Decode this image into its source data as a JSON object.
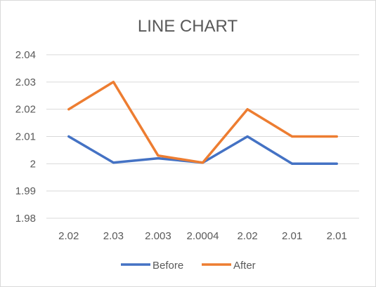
{
  "chart_data": {
    "type": "line",
    "title": "LINE CHART",
    "categories": [
      "2.02",
      "2.03",
      "2.003",
      "2.0004",
      "2.02",
      "2.01",
      "2.01"
    ],
    "y_ticks": [
      "2.04",
      "2.03",
      "2.02",
      "2.01",
      "2",
      "1.99",
      "1.98"
    ],
    "ylim": [
      1.98,
      2.04
    ],
    "grid": true,
    "legend_position": "bottom",
    "series": [
      {
        "name": "Before",
        "color": "#4472C4",
        "values": [
          2.01,
          2.0004,
          2.002,
          2.0004,
          2.01,
          2.0,
          2.0
        ]
      },
      {
        "name": "After",
        "color": "#ED7D31",
        "values": [
          2.02,
          2.03,
          2.003,
          2.0004,
          2.02,
          2.01,
          2.01
        ]
      }
    ]
  }
}
